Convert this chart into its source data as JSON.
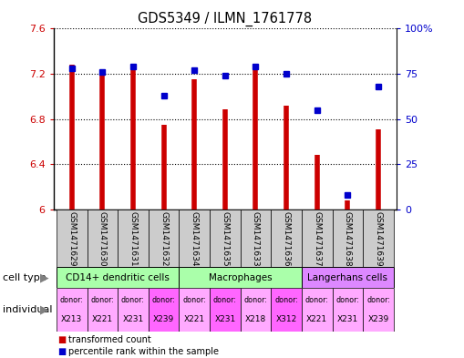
{
  "title": "GDS5349 / ILMN_1761778",
  "samples": [
    "GSM1471629",
    "GSM1471630",
    "GSM1471631",
    "GSM1471632",
    "GSM1471634",
    "GSM1471635",
    "GSM1471633",
    "GSM1471636",
    "GSM1471637",
    "GSM1471638",
    "GSM1471639"
  ],
  "transformed_counts": [
    7.28,
    7.19,
    7.28,
    6.75,
    7.15,
    6.89,
    7.24,
    6.92,
    6.48,
    6.08,
    6.71
  ],
  "percentile_ranks": [
    78,
    76,
    79,
    63,
    77,
    74,
    79,
    75,
    55,
    8,
    68
  ],
  "ylim_left": [
    6.0,
    7.6
  ],
  "ylim_right": [
    0,
    100
  ],
  "yticks_left": [
    6.0,
    6.4,
    6.8,
    7.2,
    7.6
  ],
  "ytick_labels_left": [
    "6",
    "6.4",
    "6.8",
    "7.2",
    "7.6"
  ],
  "yticks_right": [
    0,
    25,
    50,
    75,
    100
  ],
  "ytick_labels_right": [
    "0",
    "25",
    "50",
    "75",
    "100%"
  ],
  "bar_color": "#cc0000",
  "dot_color": "#0000cc",
  "cell_type_groups": [
    {
      "label": "CD14+ dendritic cells",
      "start": 0,
      "end": 3,
      "color": "#aaffaa"
    },
    {
      "label": "Macrophages",
      "start": 4,
      "end": 7,
      "color": "#aaffaa"
    },
    {
      "label": "Langerhans cells",
      "start": 8,
      "end": 10,
      "color": "#dd88ff"
    }
  ],
  "individual_groups": [
    {
      "donor": "X213",
      "idx": 0,
      "color": "#ffaaff"
    },
    {
      "donor": "X221",
      "idx": 1,
      "color": "#ffaaff"
    },
    {
      "donor": "X231",
      "idx": 2,
      "color": "#ffaaff"
    },
    {
      "donor": "X239",
      "idx": 3,
      "color": "#ff66ff"
    },
    {
      "donor": "X221",
      "idx": 4,
      "color": "#ffaaff"
    },
    {
      "donor": "X231",
      "idx": 5,
      "color": "#ff66ff"
    },
    {
      "donor": "X218",
      "idx": 6,
      "color": "#ffaaff"
    },
    {
      "donor": "X312",
      "idx": 7,
      "color": "#ff66ff"
    },
    {
      "donor": "X221",
      "idx": 8,
      "color": "#ffaaff"
    },
    {
      "donor": "X231",
      "idx": 9,
      "color": "#ffaaff"
    },
    {
      "donor": "X239",
      "idx": 10,
      "color": "#ffaaff"
    }
  ],
  "legend_items": [
    {
      "label": "transformed count",
      "color": "#cc0000"
    },
    {
      "label": "percentile rank within the sample",
      "color": "#0000cc"
    }
  ],
  "sample_bg_color": "#cccccc",
  "grid_linestyle": ":"
}
